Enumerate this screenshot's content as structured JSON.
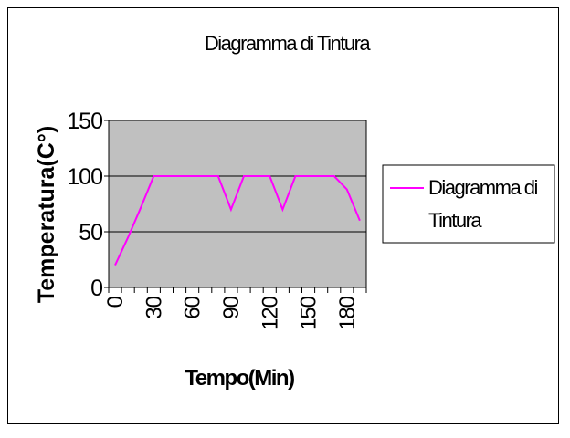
{
  "chart_data": {
    "type": "line",
    "title": "Diagramma di Tintura",
    "xlabel": "Tempo(Min)",
    "ylabel": "Temperatura(C°)",
    "ylim": [
      0,
      150
    ],
    "yticks": [
      "0",
      "50",
      "100",
      "150"
    ],
    "x_tick_labels": [
      "0",
      "30",
      "60",
      "90",
      "120",
      "150",
      "180"
    ],
    "x_tick_values": [
      0,
      30,
      60,
      90,
      120,
      150,
      180
    ],
    "x": [
      0,
      10,
      20,
      30,
      40,
      50,
      60,
      70,
      80,
      90,
      100,
      110,
      120,
      130,
      140,
      150,
      160,
      170,
      180,
      190
    ],
    "series": [
      {
        "name": "Diagramma di Tintura",
        "color": "#ff00ff",
        "values": [
          20,
          45,
          72,
          100,
          100,
          100,
          100,
          100,
          100,
          70,
          100,
          100,
          100,
          70,
          100,
          100,
          100,
          100,
          88,
          60
        ]
      }
    ],
    "legend_lines": [
      "Diagramma di",
      "Tintura"
    ],
    "legend_position": "right",
    "plot_background": "#c0c0c0",
    "grid": "horizontal"
  }
}
